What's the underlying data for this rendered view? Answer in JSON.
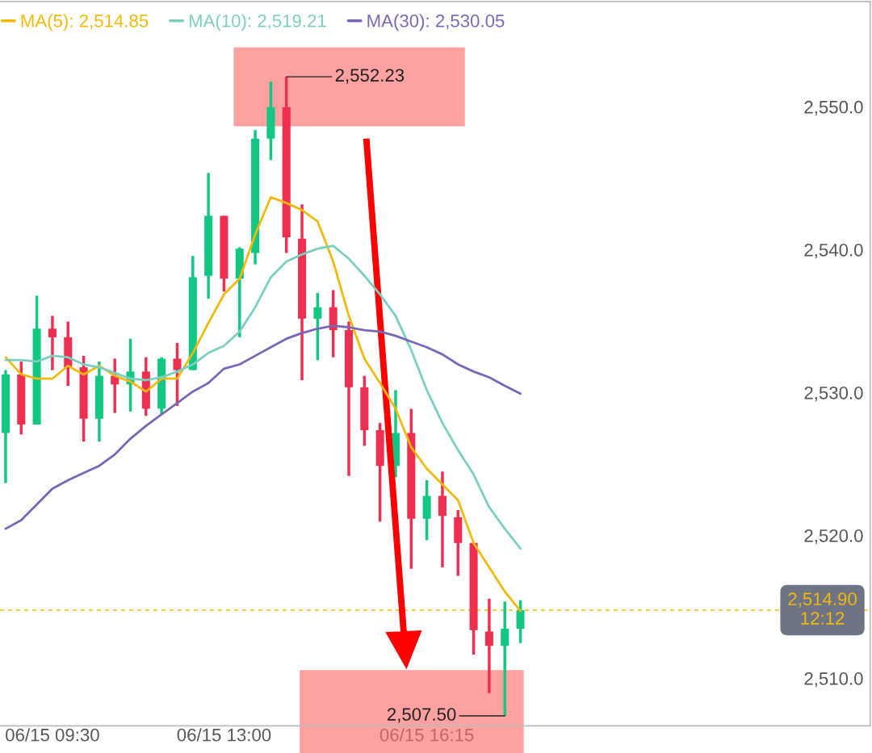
{
  "chart_data": {
    "type": "candlestick",
    "categories": [
      null,
      null,
      null,
      "06/15 09:30",
      null,
      null,
      null,
      null,
      null,
      null,
      null,
      null,
      null,
      null,
      "06/15 13:00",
      null,
      null,
      null,
      null,
      null,
      null,
      null,
      null,
      null,
      null,
      null,
      null,
      "06/15 16:15",
      null,
      null,
      null,
      null,
      null,
      null
    ],
    "ohlc": [
      [
        2527.3,
        2531.7,
        2523.8,
        2531.4
      ],
      [
        2531.4,
        2532.3,
        2527.2,
        2527.9
      ],
      [
        2527.9,
        2536.9,
        2527.9,
        2534.6
      ],
      [
        2534.6,
        2535.5,
        2531.7,
        2534.0
      ],
      [
        2534.0,
        2535.1,
        2530.6,
        2531.9
      ],
      [
        2531.9,
        2532.7,
        2526.7,
        2528.3
      ],
      [
        2528.3,
        2532.3,
        2526.7,
        2531.3
      ],
      [
        2531.3,
        2532.5,
        2528.7,
        2530.7
      ],
      [
        2530.7,
        2533.9,
        2528.8,
        2531.6
      ],
      [
        2531.6,
        2532.6,
        2528.5,
        2529.0
      ],
      [
        2529.0,
        2532.6,
        2528.6,
        2532.5
      ],
      [
        2532.5,
        2533.6,
        2529.2,
        2531.7
      ],
      [
        2531.7,
        2539.7,
        2531.7,
        2538.2
      ],
      [
        2538.3,
        2545.5,
        2536.7,
        2542.5
      ],
      [
        2542.5,
        2542.5,
        2537.2,
        2538.1
      ],
      [
        2538.1,
        2540.3,
        2534.0,
        2540.2
      ],
      [
        2539.9,
        2548.5,
        2539.1,
        2547.9
      ],
      [
        2547.9,
        2551.9,
        2546.4,
        2550.1
      ],
      [
        2550.1,
        2552.23,
        2539.9,
        2541.0
      ],
      [
        2540.9,
        2543.3,
        2531.0,
        2535.3
      ],
      [
        2535.3,
        2537.1,
        2532.4,
        2536.1
      ],
      [
        2536.1,
        2537.3,
        2532.6,
        2534.5
      ],
      [
        2534.5,
        2535.1,
        2524.3,
        2530.5
      ],
      [
        2530.5,
        2531.3,
        2526.4,
        2527.5
      ],
      [
        2527.5,
        2528.0,
        2521.1,
        2525.0
      ],
      [
        2525.0,
        2530.3,
        2524.2,
        2527.3
      ],
      [
        2527.3,
        2529.0,
        2517.8,
        2521.3
      ],
      [
        2521.3,
        2524.0,
        2519.8,
        2522.9
      ],
      [
        2522.9,
        2524.6,
        2517.9,
        2521.5
      ],
      [
        2521.4,
        2521.9,
        2517.3,
        2519.6
      ],
      [
        2519.6,
        2519.6,
        2511.8,
        2513.5
      ],
      [
        2513.4,
        2515.7,
        2509.1,
        2512.4
      ],
      [
        2512.4,
        2515.5,
        2507.5,
        2513.6
      ],
      [
        2513.6,
        2515.6,
        2512.6,
        2514.9
      ]
    ],
    "colors": [
      "#13c783",
      "#ee2f50",
      "#13c783",
      "#ee2f50",
      "#ee2f50",
      "#ee2f50",
      "#13c783",
      "#ee2f50",
      "#13c783",
      "#ee2f50",
      "#13c783",
      "#ee2f50",
      "#13c783",
      "#13c783",
      "#ee2f50",
      "#13c783",
      "#13c783",
      "#13c783",
      "#ee2f50",
      "#ee2f50",
      "#13c783",
      "#ee2f50",
      "#ee2f50",
      "#ee2f50",
      "#ee2f50",
      "#13c783",
      "#ee2f50",
      "#13c783",
      "#ee2f50",
      "#ee2f50",
      "#ee2f50",
      "#ee2f50",
      "#13c783",
      "#13c783"
    ],
    "series": [
      {
        "name": "MA(5): 2,514.85",
        "type": "line",
        "color": "#f0b90b",
        "values": [
          2532.6,
          2531.4,
          2531.1,
          2531.1,
          2532.0,
          2531.4,
          2532.0,
          2531.3,
          2530.9,
          2530.2,
          2531.1,
          2531.1,
          2532.9,
          2535.0,
          2537.0,
          2538.1,
          2541.2,
          2543.8,
          2543.4,
          2542.9,
          2542.1,
          2539.3,
          2535.5,
          2532.5,
          2530.8,
          2529.0,
          2526.3,
          2524.8,
          2523.7,
          2522.6,
          2519.6,
          2517.9,
          2516.2,
          2514.85
        ]
      },
      {
        "name": "MA(10): 2,519.21",
        "type": "line",
        "color": "#7ccfc0",
        "values": [
          2532.4,
          2532.4,
          2532.3,
          2532.7,
          2532.6,
          2532.1,
          2531.9,
          2531.5,
          2531.1,
          2531.0,
          2531.2,
          2531.6,
          2532.1,
          2532.9,
          2533.4,
          2534.4,
          2536.1,
          2538.2,
          2539.3,
          2539.8,
          2540.2,
          2540.4,
          2539.5,
          2538.3,
          2537.0,
          2535.5,
          2533.1,
          2530.3,
          2528.0,
          2526.1,
          2524.4,
          2522.1,
          2520.6,
          2519.21
        ]
      },
      {
        "name": "MA(30): 2,530.05",
        "type": "line",
        "color": "#7a66b5",
        "values": [
          2520.6,
          2521.2,
          2522.3,
          2523.4,
          2524.0,
          2524.5,
          2525.0,
          2525.8,
          2526.9,
          2527.8,
          2528.6,
          2529.4,
          2530.2,
          2530.8,
          2531.8,
          2532.1,
          2532.7,
          2533.3,
          2533.9,
          2534.3,
          2534.6,
          2534.8,
          2534.7,
          2534.5,
          2534.4,
          2534.1,
          2533.7,
          2533.3,
          2532.8,
          2532.1,
          2531.6,
          2531.2,
          2530.6,
          2530.05
        ]
      }
    ],
    "ylim": [
      2506.8,
      2557.5
    ],
    "yticks": [
      {
        "value": 2510,
        "label": "2,510.0"
      },
      {
        "value": 2520,
        "label": "2,520.0"
      },
      {
        "value": 2530,
        "label": "2,530.0"
      },
      {
        "value": 2540,
        "label": "2,540.0"
      },
      {
        "value": 2550,
        "label": "2,550.0"
      }
    ],
    "ref_lines": [
      {
        "axis": "y",
        "value": 2514.9,
        "label": "2,514.90\n12:12",
        "color": "#f0b90b",
        "line_style": "dashed"
      }
    ],
    "annotations": [
      "2,552.23",
      "2,507.50"
    ],
    "legend": "top left",
    "grid": false
  }
}
